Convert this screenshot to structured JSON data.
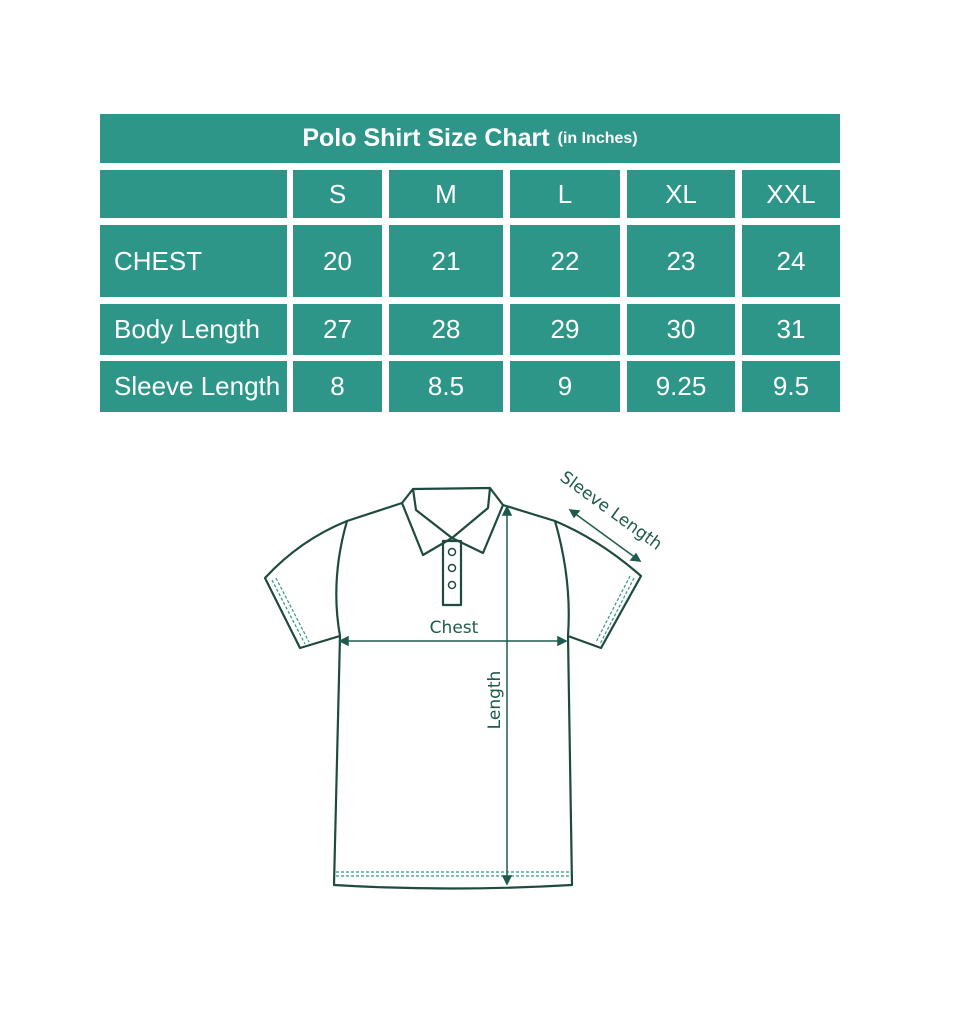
{
  "title": "Polo Shirt Size Chart",
  "unit_note": "(in Inches)",
  "sizes": [
    "S",
    "M",
    "L",
    "XL",
    "XXL"
  ],
  "rows": [
    {
      "label": "CHEST",
      "values": [
        "20",
        "21",
        "22",
        "23",
        "24"
      ]
    },
    {
      "label": "Body Length",
      "values": [
        "27",
        "28",
        "29",
        "30",
        "31"
      ]
    },
    {
      "label": "Sleeve Length",
      "values": [
        "8",
        "8.5",
        "9",
        "9.25",
        "9.5"
      ]
    }
  ],
  "diagram": {
    "chest": "Chest",
    "length": "Length",
    "sleeve": "Sleeve Length"
  },
  "colors": {
    "teal": "#2e9688",
    "outline": "#1f4a40"
  }
}
